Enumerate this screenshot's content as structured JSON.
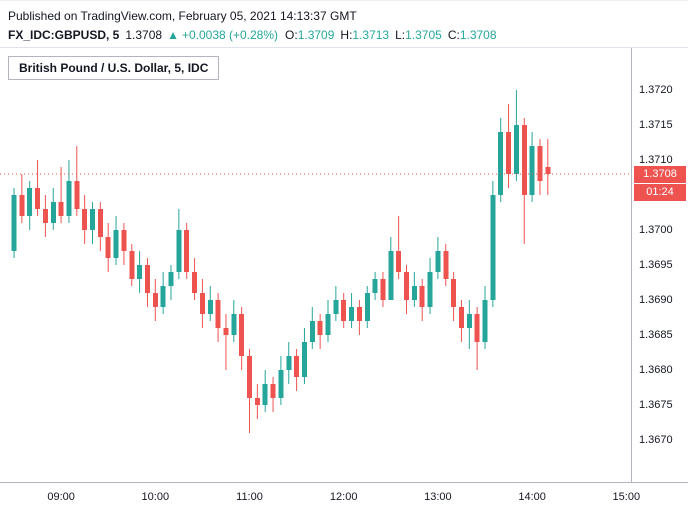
{
  "header": {
    "published_line": "Published on TradingView.com, February 05, 2021 14:13:37 GMT",
    "symbol": "FX_IDC:GBPUSD, 5",
    "last_price": "1.3708",
    "arrow": "▲",
    "change": "+0.0038 (+0.28%)",
    "ohlc": {
      "o_label": "O:",
      "o": "1.3709",
      "h_label": "H:",
      "h": "1.3713",
      "l_label": "L:",
      "l": "1.3705",
      "c_label": "C:",
      "c": "1.3708"
    }
  },
  "chart": {
    "legend": "British Pound / U.S. Dollar, 5, IDC",
    "price_badge": "1.3708",
    "countdown": "01:24",
    "colors": {
      "up": "#26a69a",
      "down": "#ef5350",
      "badge": "#ef5350",
      "axis_text": "#131722",
      "divider": "#b2b5be"
    }
  },
  "chart_data": {
    "type": "candlestick",
    "title": "British Pound / U.S. Dollar, 5, IDC",
    "symbol": "FX_IDC:GBPUSD",
    "interval_minutes": 5,
    "last_price": 1.3708,
    "ylim": [
      1.3664,
      1.3726
    ],
    "grid": false,
    "price_ticks": [
      "1.3720",
      "1.3715",
      "1.3710",
      "1.3700",
      "1.3695",
      "1.3690",
      "1.3685",
      "1.3680",
      "1.3675",
      "1.3670"
    ],
    "time_ticks": [
      {
        "label": "09:00",
        "index": 6
      },
      {
        "label": "10:00",
        "index": 18
      },
      {
        "label": "11:00",
        "index": 30
      },
      {
        "label": "12:00",
        "index": 42
      },
      {
        "label": "13:00",
        "index": 54
      },
      {
        "label": "14:00",
        "index": 66
      },
      {
        "label": "15:00",
        "index": 78
      }
    ],
    "candles": [
      {
        "t": "08:30",
        "o": 1.3697,
        "h": 1.3706,
        "l": 1.3696,
        "c": 1.3705
      },
      {
        "t": "08:35",
        "o": 1.3705,
        "h": 1.3708,
        "l": 1.3701,
        "c": 1.3702
      },
      {
        "t": "08:40",
        "o": 1.3702,
        "h": 1.3707,
        "l": 1.37,
        "c": 1.3706
      },
      {
        "t": "08:45",
        "o": 1.3706,
        "h": 1.371,
        "l": 1.3702,
        "c": 1.3703
      },
      {
        "t": "08:50",
        "o": 1.3703,
        "h": 1.3705,
        "l": 1.3699,
        "c": 1.3701
      },
      {
        "t": "08:55",
        "o": 1.3701,
        "h": 1.3706,
        "l": 1.37,
        "c": 1.3704
      },
      {
        "t": "09:00",
        "o": 1.3704,
        "h": 1.3709,
        "l": 1.3701,
        "c": 1.3702
      },
      {
        "t": "09:05",
        "o": 1.3702,
        "h": 1.371,
        "l": 1.3701,
        "c": 1.3707
      },
      {
        "t": "09:10",
        "o": 1.3707,
        "h": 1.3712,
        "l": 1.3702,
        "c": 1.3703
      },
      {
        "t": "09:15",
        "o": 1.3703,
        "h": 1.3705,
        "l": 1.3698,
        "c": 1.37
      },
      {
        "t": "09:20",
        "o": 1.37,
        "h": 1.3704,
        "l": 1.3698,
        "c": 1.3703
      },
      {
        "t": "09:25",
        "o": 1.3703,
        "h": 1.3704,
        "l": 1.3697,
        "c": 1.3699
      },
      {
        "t": "09:30",
        "o": 1.3699,
        "h": 1.3701,
        "l": 1.3694,
        "c": 1.3696
      },
      {
        "t": "09:35",
        "o": 1.3696,
        "h": 1.3702,
        "l": 1.3695,
        "c": 1.37
      },
      {
        "t": "09:40",
        "o": 1.37,
        "h": 1.3701,
        "l": 1.3695,
        "c": 1.3697
      },
      {
        "t": "09:45",
        "o": 1.3697,
        "h": 1.3698,
        "l": 1.3692,
        "c": 1.3693
      },
      {
        "t": "09:50",
        "o": 1.3693,
        "h": 1.3697,
        "l": 1.3691,
        "c": 1.3695
      },
      {
        "t": "09:55",
        "o": 1.3695,
        "h": 1.3696,
        "l": 1.3689,
        "c": 1.3691
      },
      {
        "t": "10:00",
        "o": 1.3691,
        "h": 1.3693,
        "l": 1.3687,
        "c": 1.3689
      },
      {
        "t": "10:05",
        "o": 1.3689,
        "h": 1.3694,
        "l": 1.3688,
        "c": 1.3692
      },
      {
        "t": "10:10",
        "o": 1.3692,
        "h": 1.3695,
        "l": 1.369,
        "c": 1.3694
      },
      {
        "t": "10:15",
        "o": 1.3694,
        "h": 1.3703,
        "l": 1.3693,
        "c": 1.37
      },
      {
        "t": "10:20",
        "o": 1.37,
        "h": 1.3701,
        "l": 1.3693,
        "c": 1.3694
      },
      {
        "t": "10:25",
        "o": 1.3694,
        "h": 1.3696,
        "l": 1.369,
        "c": 1.3691
      },
      {
        "t": "10:30",
        "o": 1.3691,
        "h": 1.3693,
        "l": 1.3686,
        "c": 1.3688
      },
      {
        "t": "10:35",
        "o": 1.3688,
        "h": 1.3692,
        "l": 1.3687,
        "c": 1.369
      },
      {
        "t": "10:40",
        "o": 1.369,
        "h": 1.3691,
        "l": 1.3684,
        "c": 1.3686
      },
      {
        "t": "10:45",
        "o": 1.3686,
        "h": 1.3688,
        "l": 1.368,
        "c": 1.3685
      },
      {
        "t": "10:50",
        "o": 1.3685,
        "h": 1.369,
        "l": 1.3684,
        "c": 1.3688
      },
      {
        "t": "10:55",
        "o": 1.3688,
        "h": 1.3689,
        "l": 1.368,
        "c": 1.3682
      },
      {
        "t": "11:00",
        "o": 1.3682,
        "h": 1.3683,
        "l": 1.3671,
        "c": 1.3676
      },
      {
        "t": "11:05",
        "o": 1.3676,
        "h": 1.3678,
        "l": 1.3673,
        "c": 1.3675
      },
      {
        "t": "11:10",
        "o": 1.3675,
        "h": 1.368,
        "l": 1.3674,
        "c": 1.3678
      },
      {
        "t": "11:15",
        "o": 1.3678,
        "h": 1.3679,
        "l": 1.3674,
        "c": 1.3676
      },
      {
        "t": "11:20",
        "o": 1.3676,
        "h": 1.3682,
        "l": 1.3675,
        "c": 1.368
      },
      {
        "t": "11:25",
        "o": 1.368,
        "h": 1.3684,
        "l": 1.3678,
        "c": 1.3682
      },
      {
        "t": "11:30",
        "o": 1.3682,
        "h": 1.3683,
        "l": 1.3677,
        "c": 1.3679
      },
      {
        "t": "11:35",
        "o": 1.3679,
        "h": 1.3686,
        "l": 1.3678,
        "c": 1.3684
      },
      {
        "t": "11:40",
        "o": 1.3684,
        "h": 1.3689,
        "l": 1.3683,
        "c": 1.3687
      },
      {
        "t": "11:45",
        "o": 1.3687,
        "h": 1.3688,
        "l": 1.3683,
        "c": 1.3685
      },
      {
        "t": "11:50",
        "o": 1.3685,
        "h": 1.369,
        "l": 1.3684,
        "c": 1.3688
      },
      {
        "t": "11:55",
        "o": 1.3688,
        "h": 1.3692,
        "l": 1.3687,
        "c": 1.369
      },
      {
        "t": "12:00",
        "o": 1.369,
        "h": 1.3691,
        "l": 1.3686,
        "c": 1.3687
      },
      {
        "t": "12:05",
        "o": 1.3687,
        "h": 1.3691,
        "l": 1.3686,
        "c": 1.3689
      },
      {
        "t": "12:10",
        "o": 1.3689,
        "h": 1.369,
        "l": 1.3685,
        "c": 1.3687
      },
      {
        "t": "12:15",
        "o": 1.3687,
        "h": 1.3692,
        "l": 1.3686,
        "c": 1.3691
      },
      {
        "t": "12:20",
        "o": 1.3691,
        "h": 1.3694,
        "l": 1.369,
        "c": 1.3693
      },
      {
        "t": "12:25",
        "o": 1.3693,
        "h": 1.3694,
        "l": 1.3689,
        "c": 1.369
      },
      {
        "t": "12:30",
        "o": 1.369,
        "h": 1.3699,
        "l": 1.369,
        "c": 1.3697
      },
      {
        "t": "12:35",
        "o": 1.3697,
        "h": 1.3702,
        "l": 1.3693,
        "c": 1.3694
      },
      {
        "t": "12:40",
        "o": 1.3694,
        "h": 1.3695,
        "l": 1.3688,
        "c": 1.369
      },
      {
        "t": "12:45",
        "o": 1.369,
        "h": 1.3694,
        "l": 1.3689,
        "c": 1.3692
      },
      {
        "t": "12:50",
        "o": 1.3692,
        "h": 1.3693,
        "l": 1.3687,
        "c": 1.3689
      },
      {
        "t": "12:55",
        "o": 1.3689,
        "h": 1.3696,
        "l": 1.3688,
        "c": 1.3694
      },
      {
        "t": "13:00",
        "o": 1.3694,
        "h": 1.3699,
        "l": 1.3693,
        "c": 1.3697
      },
      {
        "t": "13:05",
        "o": 1.3697,
        "h": 1.3698,
        "l": 1.3692,
        "c": 1.3693
      },
      {
        "t": "13:10",
        "o": 1.3693,
        "h": 1.3694,
        "l": 1.3687,
        "c": 1.3689
      },
      {
        "t": "13:15",
        "o": 1.3689,
        "h": 1.369,
        "l": 1.3684,
        "c": 1.3686
      },
      {
        "t": "13:20",
        "o": 1.3686,
        "h": 1.369,
        "l": 1.3683,
        "c": 1.3688
      },
      {
        "t": "13:25",
        "o": 1.3688,
        "h": 1.3689,
        "l": 1.368,
        "c": 1.3684
      },
      {
        "t": "13:30",
        "o": 1.3684,
        "h": 1.3692,
        "l": 1.3683,
        "c": 1.369
      },
      {
        "t": "13:35",
        "o": 1.369,
        "h": 1.3707,
        "l": 1.3689,
        "c": 1.3705
      },
      {
        "t": "13:40",
        "o": 1.3705,
        "h": 1.3716,
        "l": 1.3704,
        "c": 1.3714
      },
      {
        "t": "13:45",
        "o": 1.3714,
        "h": 1.3718,
        "l": 1.3706,
        "c": 1.3708
      },
      {
        "t": "13:50",
        "o": 1.3708,
        "h": 1.372,
        "l": 1.3707,
        "c": 1.3715
      },
      {
        "t": "13:55",
        "o": 1.3715,
        "h": 1.3716,
        "l": 1.3698,
        "c": 1.3705
      },
      {
        "t": "14:00",
        "o": 1.3705,
        "h": 1.3714,
        "l": 1.3704,
        "c": 1.3712
      },
      {
        "t": "14:05",
        "o": 1.3712,
        "h": 1.3713,
        "l": 1.3705,
        "c": 1.3707
      },
      {
        "t": "14:10",
        "o": 1.3709,
        "h": 1.3713,
        "l": 1.3705,
        "c": 1.3708
      }
    ]
  }
}
